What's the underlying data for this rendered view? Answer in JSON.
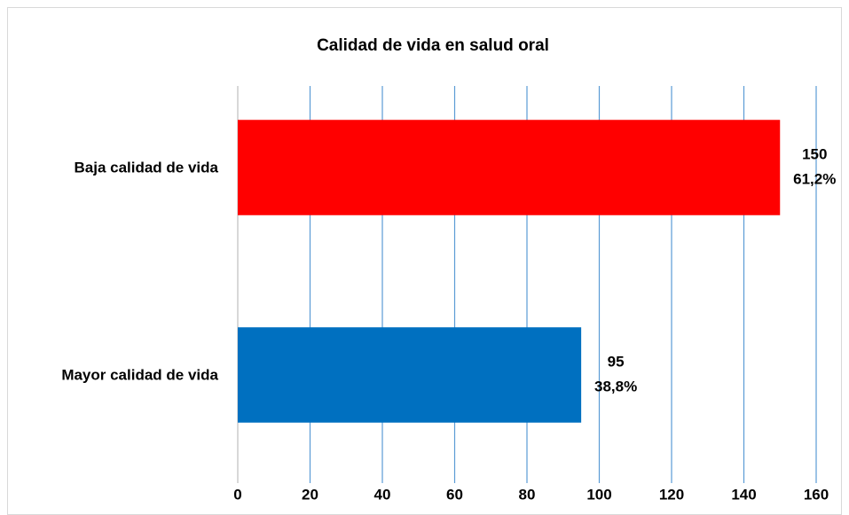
{
  "chart_data": {
    "type": "barh",
    "title": "Calidad de vida en salud oral",
    "categories": [
      "Baja calidad de vida",
      "Mayor calidad de vida"
    ],
    "values": [
      150,
      95
    ],
    "percent": [
      61.2,
      38.8
    ],
    "percent_labels": [
      "61,2%",
      "38,8%"
    ],
    "colors": [
      "#ff0000",
      "#0070c0"
    ],
    "xlim": [
      0,
      160
    ],
    "xticks": [
      0,
      20,
      40,
      60,
      80,
      100,
      120,
      140,
      160
    ],
    "grid": true,
    "grid_color": "#5b9bd5"
  }
}
